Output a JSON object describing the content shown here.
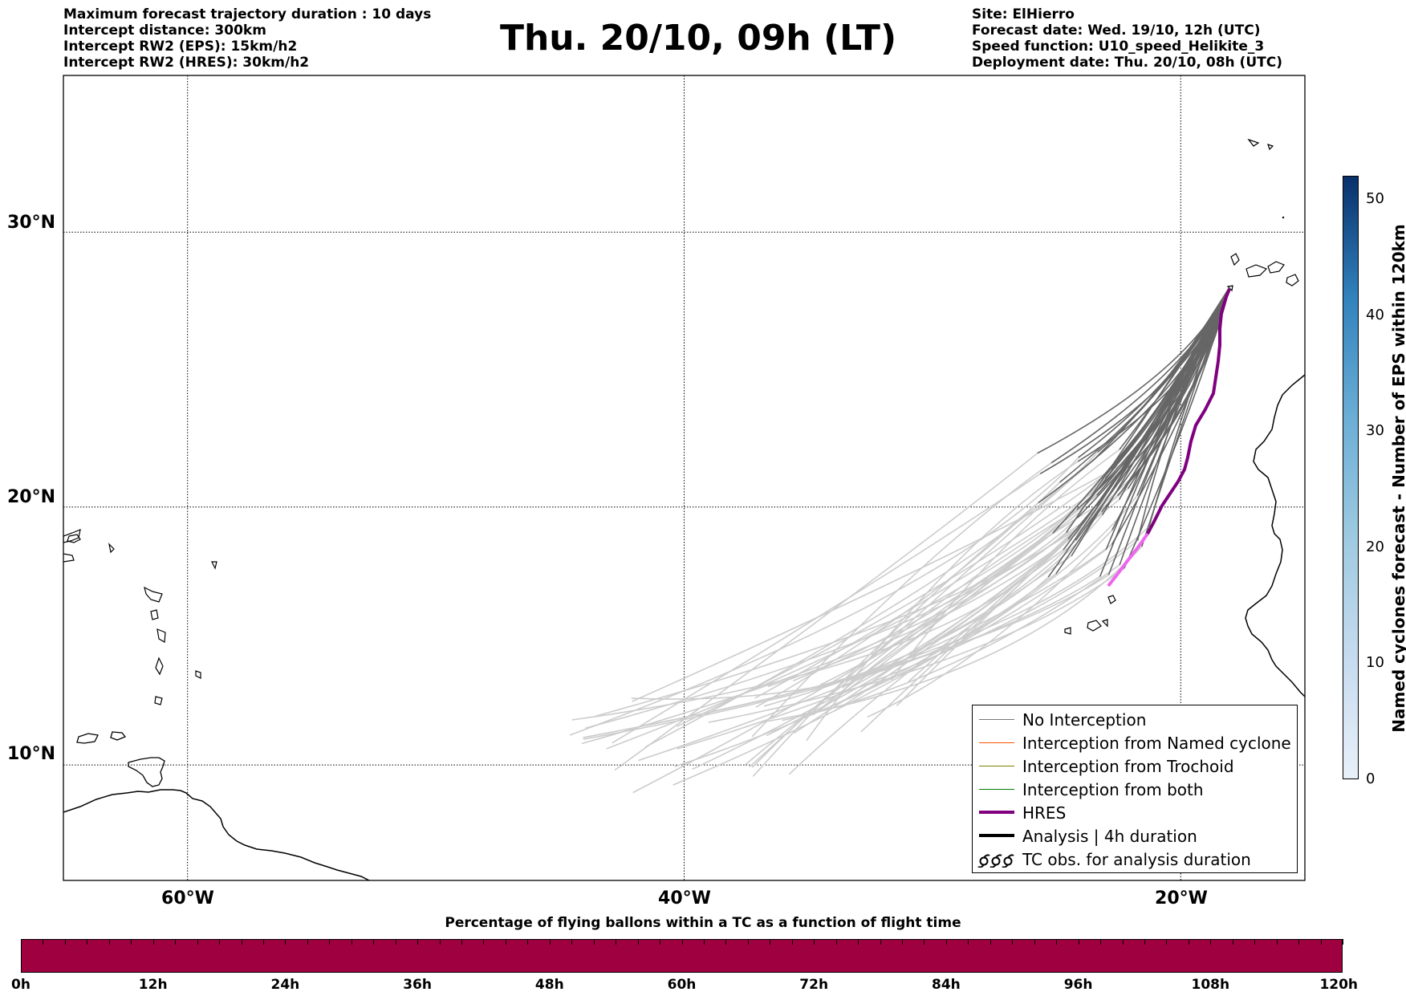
{
  "header": {
    "left_lines": [
      "Maximum forecast trajectory duration : 10 days",
      "Intercept distance: 300km",
      "Intercept RW2 (EPS):  15km/h2",
      "Intercept RW2 (HRES): 30km/h2"
    ],
    "title": "Thu. 20/10, 09h (LT)",
    "right_lines": [
      "Site: ElHierro",
      "Forecast date: Wed. 19/10, 12h (UTC)",
      "Speed function: U10_speed_Helikite_3",
      "Deployment date: Thu. 20/10, 08h (UTC)"
    ]
  },
  "map": {
    "lat_labels": [
      "30°N",
      "20°N",
      "10°N"
    ],
    "lon_labels": [
      "60°W",
      "40°W",
      "20°W"
    ],
    "lat_values": [
      30,
      20,
      10
    ],
    "lon_values": [
      -60,
      -40,
      -20
    ],
    "bounds": {
      "lon_min": -65,
      "lon_max": -15,
      "lat_min": 5.4,
      "lat_max": 35.3
    },
    "gridlines": "dotted"
  },
  "legend": {
    "items": [
      {
        "label": "No Interception",
        "color": "#777777",
        "icon": "thin-line"
      },
      {
        "label": "Interception from Named cyclone",
        "color": "#ff5500",
        "icon": "thin-line"
      },
      {
        "label": "Interception from Trochoid",
        "color": "#808000",
        "icon": "thin-line"
      },
      {
        "label": "Interception from both",
        "color": "#008000",
        "icon": "thin-line"
      },
      {
        "label": "HRES",
        "color": "#800080",
        "icon": "thick-line"
      },
      {
        "label": "Analysis | 4h duration",
        "color": "#000000",
        "icon": "thick-line"
      },
      {
        "label": "TC obs. for analysis duration",
        "color": "#000000",
        "icon": "cyclone-symbols"
      }
    ]
  },
  "colorbar": {
    "label": "Named cyclones forecast - Number of EPS within 120km",
    "min": 0,
    "max": 52,
    "ticks": [
      "0",
      "10",
      "20",
      "30",
      "40",
      "50"
    ],
    "colors": [
      "#e8f0f9",
      "#c6dbef",
      "#9ecae1",
      "#6baed6",
      "#3182bd",
      "#08306b"
    ]
  },
  "bottom_bar": {
    "title": "Percentage of flying ballons within a TC as a function of flight time",
    "ticks": [
      "0h",
      "12h",
      "24h",
      "36h",
      "48h",
      "60h",
      "72h",
      "84h",
      "96h",
      "108h",
      "120h"
    ],
    "color": "#9e0040"
  },
  "colors": {
    "no_interception": "#666666",
    "faded_trajectory": "#cccccc",
    "hres": "#800080",
    "hres_faded": "#ee66ee",
    "coast": "#000000"
  }
}
